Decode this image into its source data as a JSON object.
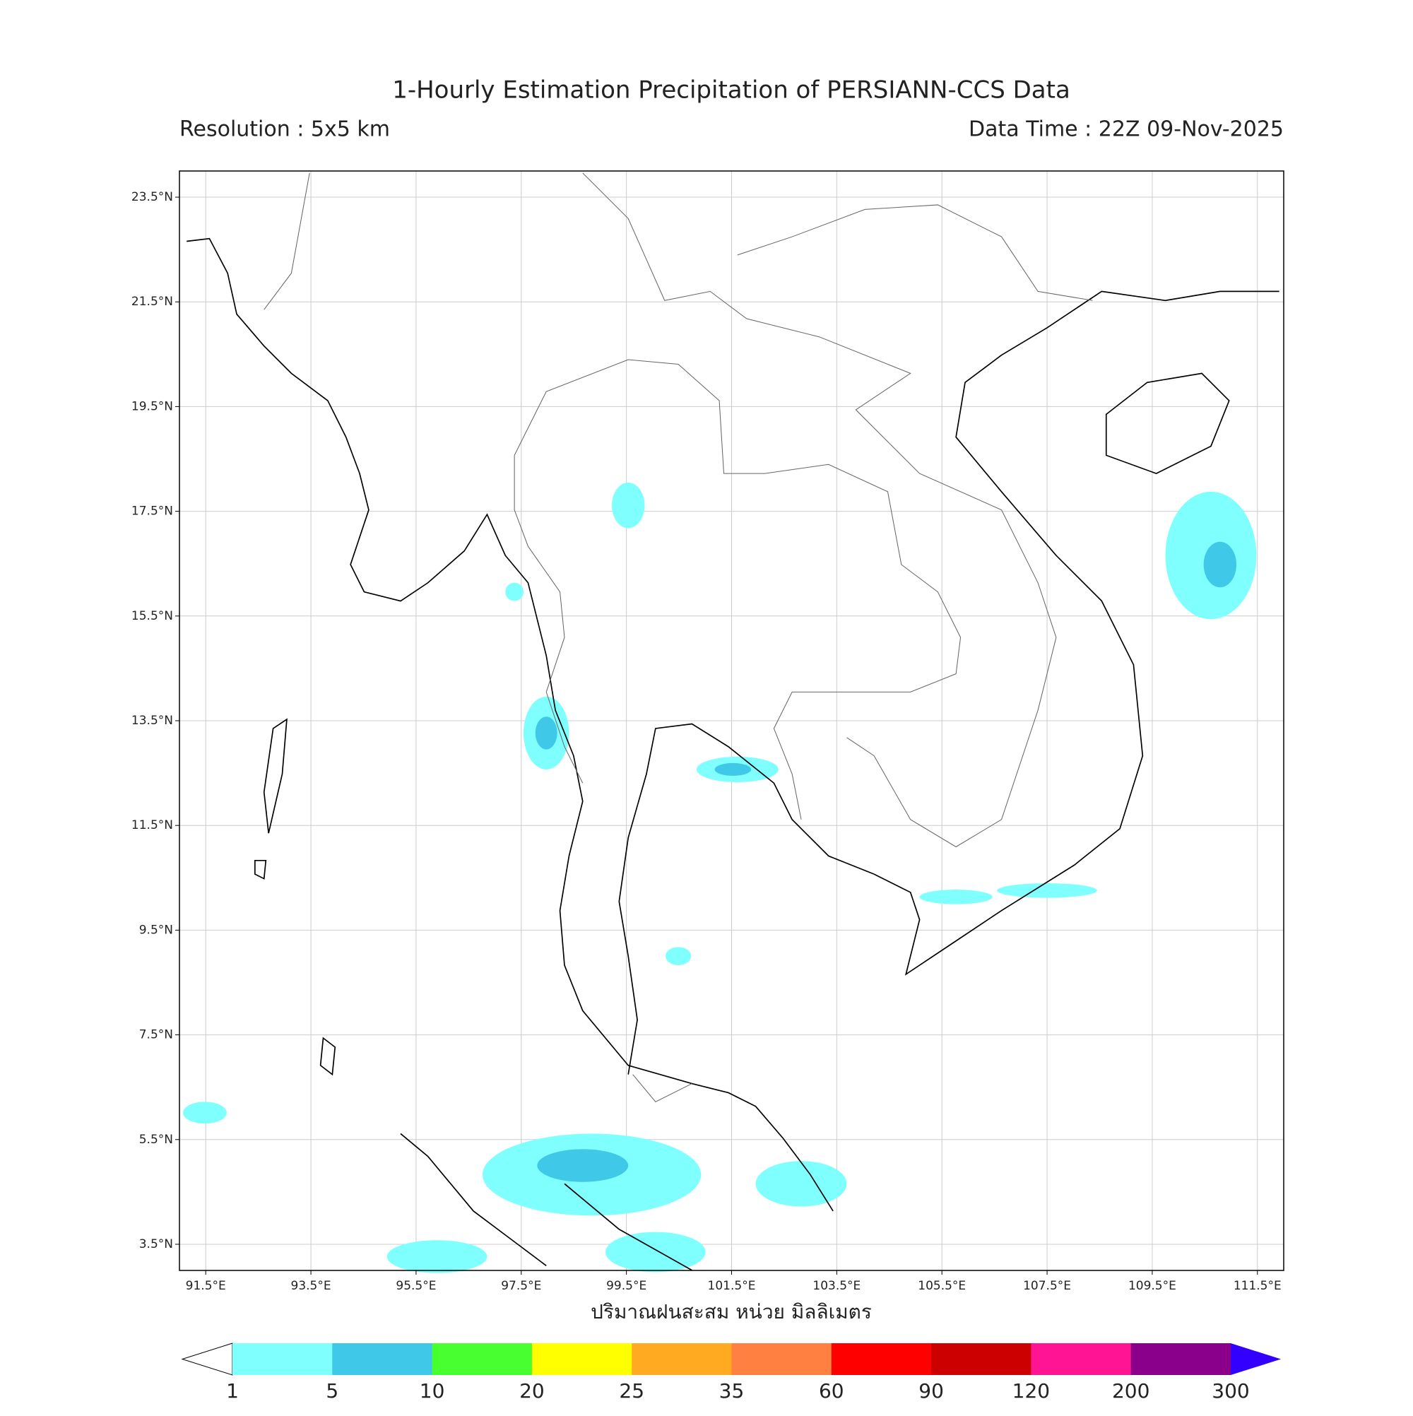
{
  "map": {
    "title": "1-Hourly Estimation Precipitation of PERSIANN-CCS Data",
    "resolution": "Resolution : 5x5 km",
    "data_time": "Data Time : 22Z 09-Nov-2025",
    "xlabel": "ปริมาณฝนสะสม หน่วย มิลลิเมตร",
    "xlim": [
      91,
      112
    ],
    "ylim": [
      3,
      24
    ],
    "xticks": [
      {
        "value": 91.5,
        "label": "91.5°E"
      },
      {
        "value": 93.5,
        "label": "93.5°E"
      },
      {
        "value": 95.5,
        "label": "95.5°E"
      },
      {
        "value": 97.5,
        "label": "97.5°E"
      },
      {
        "value": 99.5,
        "label": "99.5°E"
      },
      {
        "value": 101.5,
        "label": "101.5°E"
      },
      {
        "value": 103.5,
        "label": "103.5°E"
      },
      {
        "value": 105.5,
        "label": "105.5°E"
      },
      {
        "value": 107.5,
        "label": "107.5°E"
      },
      {
        "value": 109.5,
        "label": "109.5°E"
      },
      {
        "value": 111.5,
        "label": "111.5°E"
      }
    ],
    "yticks": [
      {
        "value": 23.5,
        "label": "23.5°N"
      },
      {
        "value": 21.5,
        "label": "21.5°N"
      },
      {
        "value": 19.5,
        "label": "19.5°N"
      },
      {
        "value": 17.5,
        "label": "17.5°N"
      },
      {
        "value": 15.5,
        "label": "15.5°N"
      },
      {
        "value": 13.5,
        "label": "13.5°N"
      },
      {
        "value": 11.5,
        "label": "11.5°N"
      },
      {
        "value": 9.5,
        "label": "9.5°N"
      },
      {
        "value": 7.5,
        "label": "7.5°N"
      },
      {
        "value": 5.5,
        "label": "5.5°N"
      },
      {
        "value": 3.5,
        "label": "3.5°N"
      }
    ],
    "grid": true,
    "colorbar": {
      "levels": [
        1,
        5,
        10,
        20,
        25,
        35,
        60,
        90,
        120,
        200,
        300
      ],
      "colors": [
        "#80ffff",
        "#40c8e8",
        "#48ff30",
        "#ffff00",
        "#ffaa20",
        "#ff8040",
        "#ff0000",
        "#cc0000",
        "#ff1493",
        "#8b008b"
      ],
      "under_color": "#ffffff",
      "over_color": "#3300ff"
    }
  }
}
